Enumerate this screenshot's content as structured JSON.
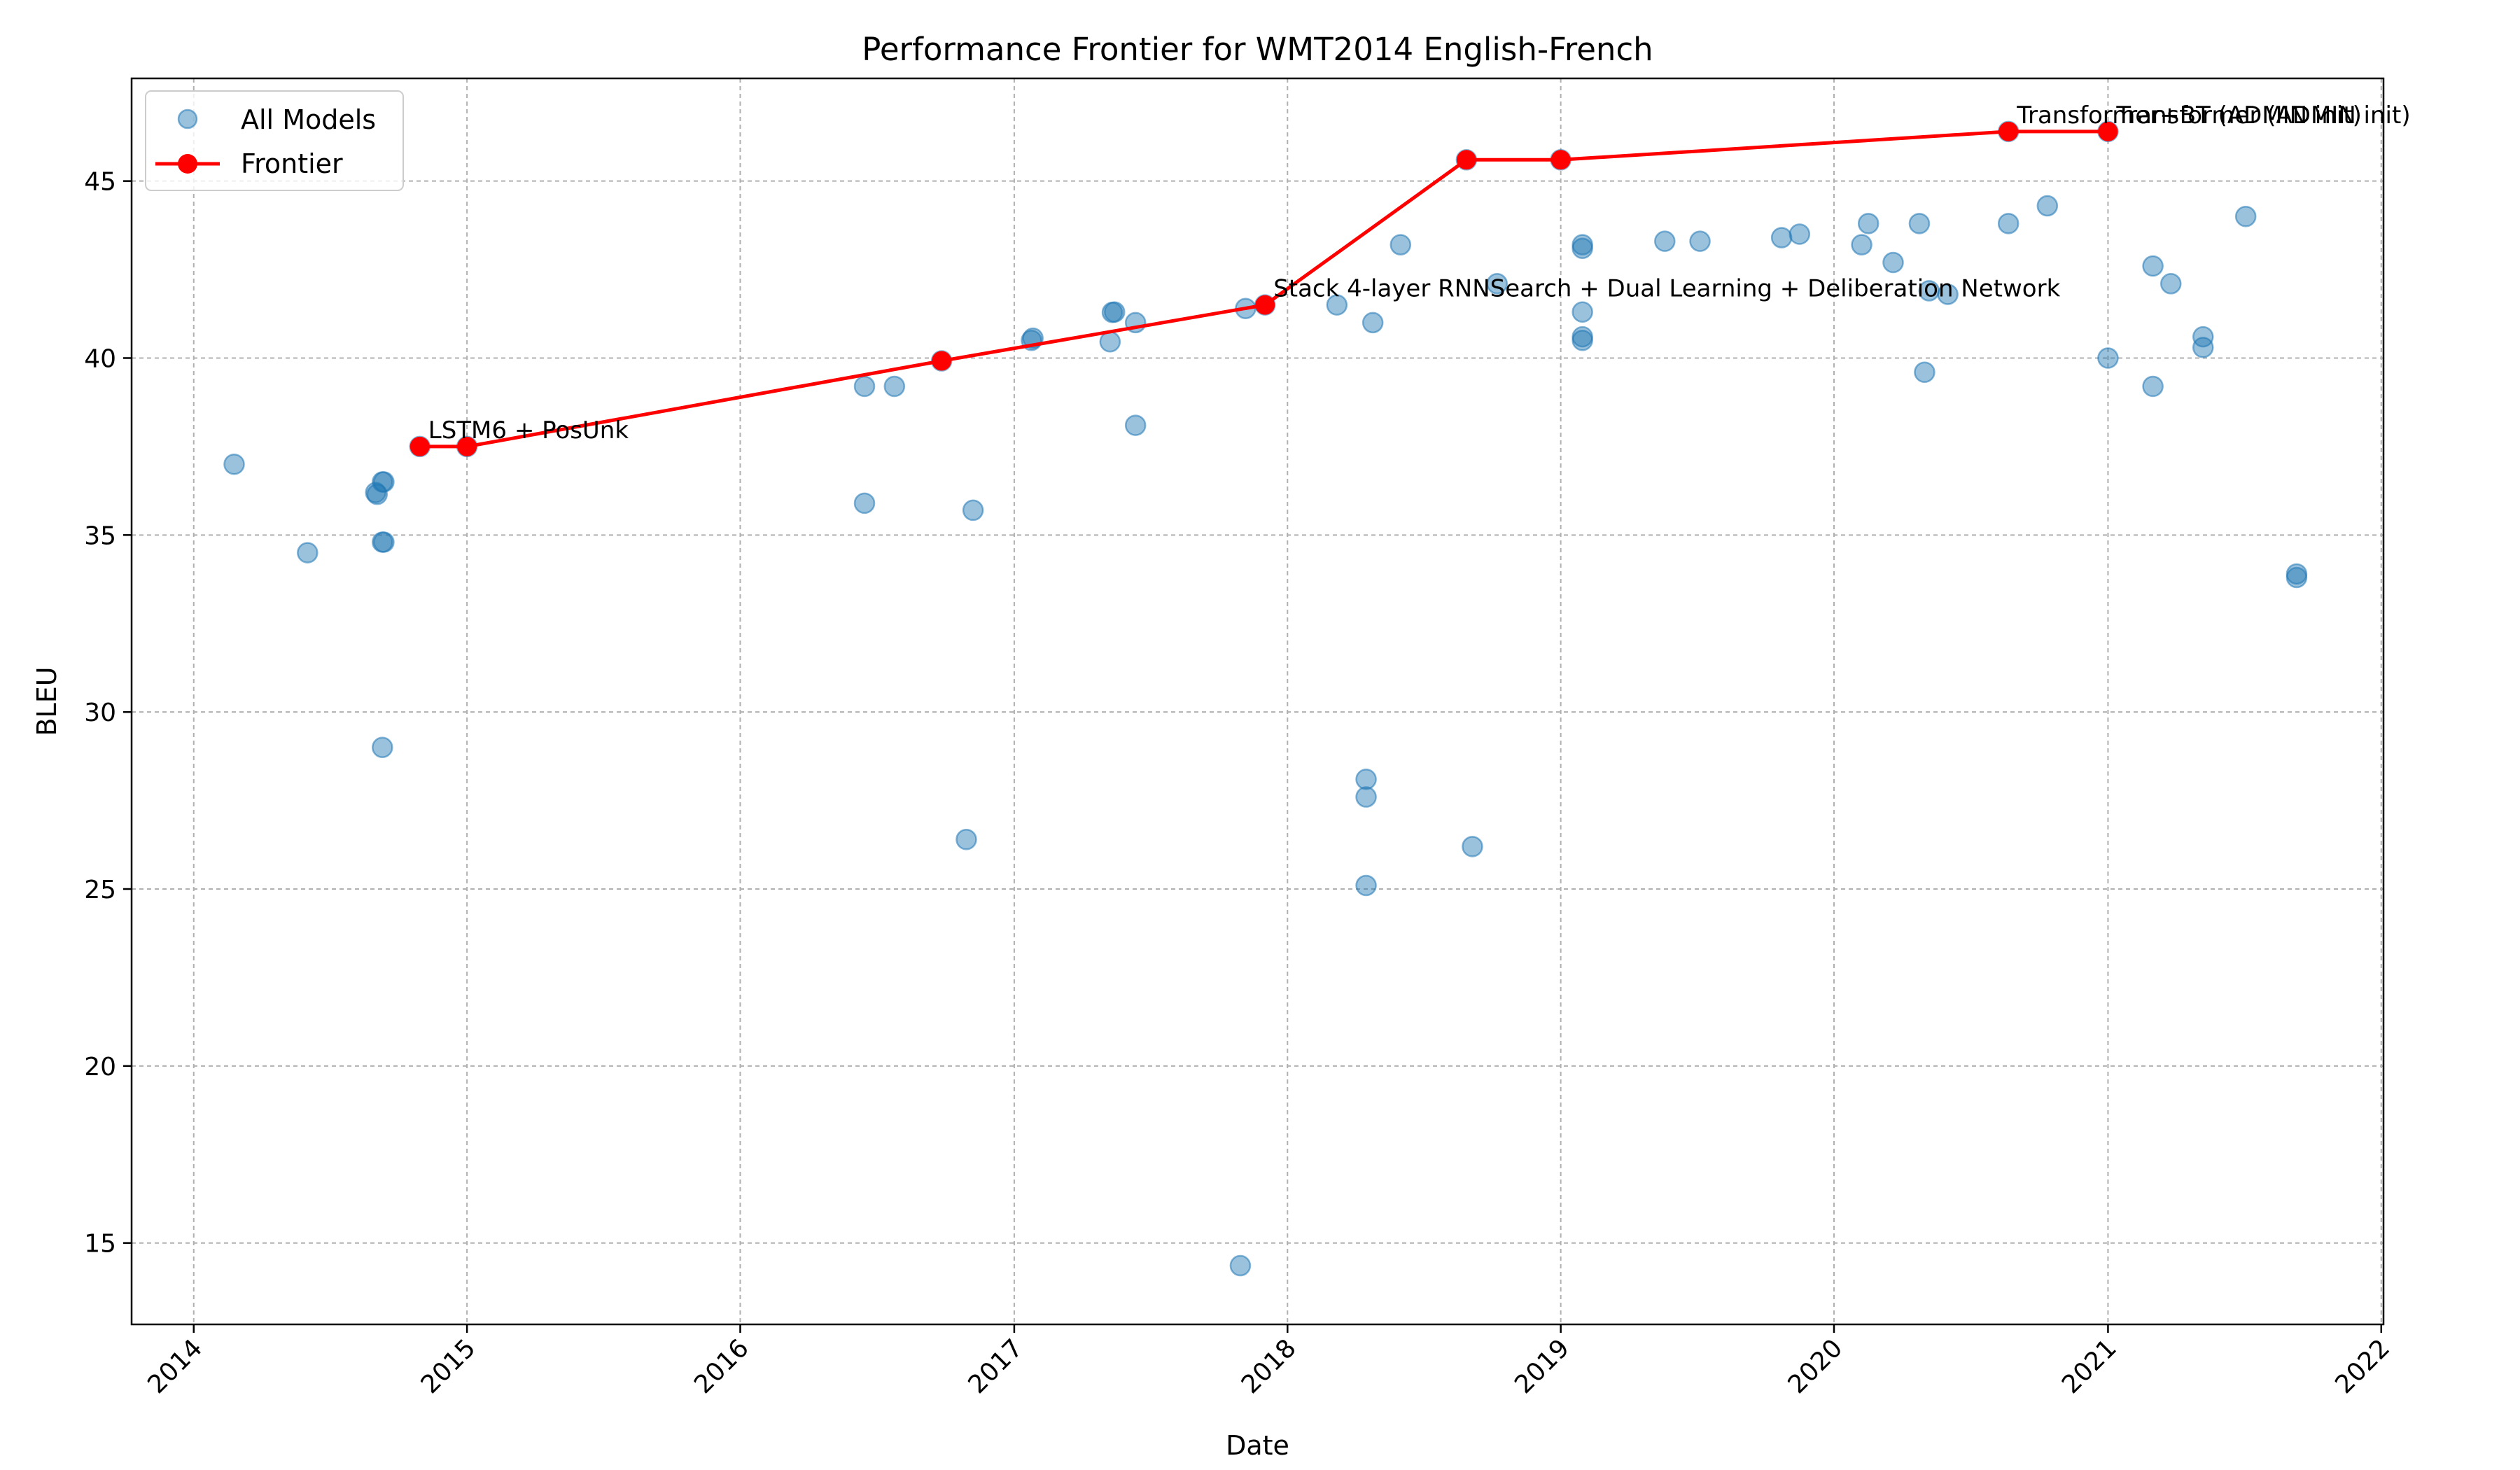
{
  "chart_data": {
    "type": "scatter",
    "title": "Performance Frontier for WMT2014 English-French",
    "xlabel": "Date",
    "ylabel": "BLEU",
    "x_ticks": [
      "2014",
      "2015",
      "2016",
      "2017",
      "2018",
      "2019",
      "2020",
      "2021",
      "2022"
    ],
    "y_ticks": [
      15,
      20,
      25,
      30,
      35,
      40,
      45
    ],
    "xlim": [
      "2013-10-10",
      "2022-01-04"
    ],
    "ylim": [
      12.7,
      47.9
    ],
    "grid": true,
    "legend_position": "top-left",
    "colors": {
      "all_models": "#1f77b4",
      "frontier": "#ff0000"
    },
    "series": [
      {
        "name": "All Models",
        "kind": "scatter",
        "points": [
          [
            "2014-02-24",
            37.0
          ],
          [
            "2014-06-02",
            34.5
          ],
          [
            "2014-09-01",
            36.2
          ],
          [
            "2014-09-03",
            36.15
          ],
          [
            "2014-09-10",
            36.5
          ],
          [
            "2014-09-12",
            36.5
          ],
          [
            "2014-09-10",
            34.8
          ],
          [
            "2014-09-12",
            34.8
          ],
          [
            "2014-09-10",
            29.0
          ],
          [
            "2014-10-30",
            37.5
          ],
          [
            "2015-01-01",
            37.5
          ],
          [
            "2016-06-15",
            39.2
          ],
          [
            "2016-06-15",
            35.9
          ],
          [
            "2016-07-25",
            39.2
          ],
          [
            "2016-09-26",
            39.92
          ],
          [
            "2016-10-29",
            26.4
          ],
          [
            "2016-11-07",
            35.7
          ],
          [
            "2017-01-24",
            40.5
          ],
          [
            "2017-01-26",
            40.56
          ],
          [
            "2017-05-09",
            40.46
          ],
          [
            "2017-05-12",
            41.29
          ],
          [
            "2017-05-15",
            41.3
          ],
          [
            "2017-06-12",
            41.0
          ],
          [
            "2017-06-12",
            38.1
          ],
          [
            "2017-10-30",
            14.36
          ],
          [
            "2017-11-06",
            41.4
          ],
          [
            "2017-12-02",
            41.5
          ],
          [
            "2018-03-08",
            41.5
          ],
          [
            "2018-04-16",
            28.1
          ],
          [
            "2018-04-16",
            27.6
          ],
          [
            "2018-04-16",
            25.1
          ],
          [
            "2018-04-25",
            41.0
          ],
          [
            "2018-06-01",
            43.2
          ],
          [
            "2018-08-28",
            45.6
          ],
          [
            "2018-09-05",
            26.2
          ],
          [
            "2018-10-08",
            42.1
          ],
          [
            "2019-01-01",
            45.6
          ],
          [
            "2019-01-30",
            43.2
          ],
          [
            "2019-01-30",
            43.1
          ],
          [
            "2019-01-30",
            41.3
          ],
          [
            "2019-01-30",
            40.6
          ],
          [
            "2019-01-30",
            40.5
          ],
          [
            "2019-05-20",
            43.3
          ],
          [
            "2019-07-06",
            43.3
          ],
          [
            "2019-10-23",
            43.4
          ],
          [
            "2019-11-16",
            43.5
          ],
          [
            "2020-02-07",
            43.2
          ],
          [
            "2020-02-16",
            43.8
          ],
          [
            "2020-03-20",
            42.7
          ],
          [
            "2020-04-24",
            43.8
          ],
          [
            "2020-05-01",
            39.6
          ],
          [
            "2020-05-07",
            41.9
          ],
          [
            "2020-06-01",
            41.8
          ],
          [
            "2020-08-21",
            43.8
          ],
          [
            "2020-08-21",
            46.4
          ],
          [
            "2020-10-12",
            44.3
          ],
          [
            "2021-01-01",
            40.0
          ],
          [
            "2021-01-01",
            46.4
          ],
          [
            "2021-03-02",
            42.6
          ],
          [
            "2021-03-02",
            39.2
          ],
          [
            "2021-03-26",
            42.1
          ],
          [
            "2021-05-08",
            40.6
          ],
          [
            "2021-05-08",
            40.3
          ],
          [
            "2021-07-04",
            44.0
          ],
          [
            "2021-09-10",
            33.9
          ],
          [
            "2021-09-10",
            33.8
          ]
        ]
      },
      {
        "name": "Frontier",
        "kind": "line",
        "points": [
          [
            "2014-10-30",
            37.5
          ],
          [
            "2015-01-01",
            37.5
          ],
          [
            "2016-09-26",
            39.92
          ],
          [
            "2017-12-02",
            41.5
          ],
          [
            "2018-08-28",
            45.6
          ],
          [
            "2019-01-01",
            45.6
          ],
          [
            "2020-08-21",
            46.4
          ],
          [
            "2021-01-01",
            46.4
          ]
        ]
      }
    ],
    "annotations": [
      {
        "text": "LSTM6 + PosUnk",
        "x": "2014-10-30",
        "y": 37.5
      },
      {
        "text": "Stack 4-layer RNNSearch + Dual Learning + Deliberation Network",
        "x": "2017-12-02",
        "y": 41.5
      },
      {
        "text": "Transformer (ADMIN init)",
        "x": "2021-01-01",
        "y": 46.4
      },
      {
        "text": "Transformer+BT (ADMIN init)",
        "x": "2020-08-21",
        "y": 46.4
      }
    ]
  }
}
